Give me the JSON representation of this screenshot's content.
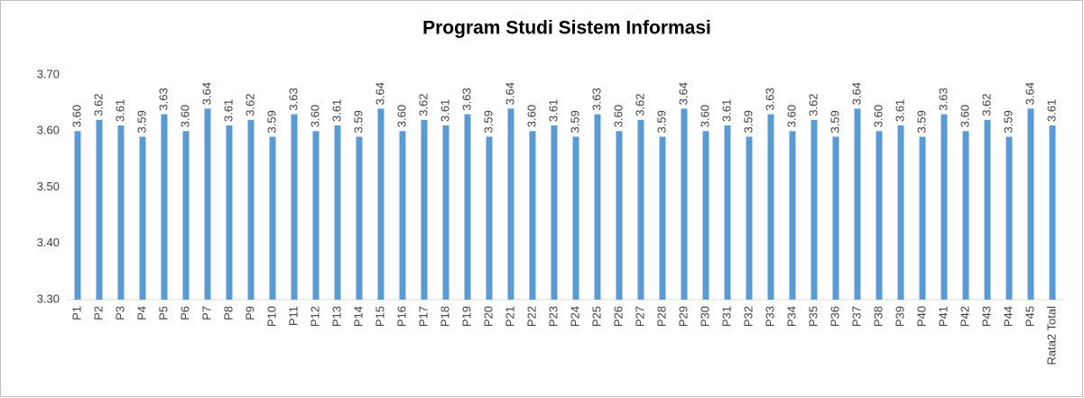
{
  "chart_data": {
    "type": "bar",
    "title": "Program Studi Sistem Informasi",
    "categories": [
      "P1",
      "P2",
      "P3",
      "P4",
      "P5",
      "P6",
      "P7",
      "P8",
      "P9",
      "P10",
      "P11",
      "P12",
      "P13",
      "P14",
      "P15",
      "P16",
      "P17",
      "P18",
      "P19",
      "P20",
      "P21",
      "P22",
      "P23",
      "P24",
      "P25",
      "P26",
      "P27",
      "P28",
      "P29",
      "P30",
      "P31",
      "P32",
      "P33",
      "P34",
      "P35",
      "P36",
      "P37",
      "P38",
      "P39",
      "P40",
      "P41",
      "P42",
      "P43",
      "P44",
      "P45",
      "Rata2 Total"
    ],
    "values": [
      3.6,
      3.62,
      3.61,
      3.59,
      3.63,
      3.6,
      3.64,
      3.61,
      3.62,
      3.59,
      3.63,
      3.6,
      3.61,
      3.59,
      3.64,
      3.6,
      3.62,
      3.61,
      3.63,
      3.59,
      3.64,
      3.6,
      3.61,
      3.59,
      3.63,
      3.6,
      3.62,
      3.59,
      3.64,
      3.6,
      3.61,
      3.59,
      3.63,
      3.6,
      3.62,
      3.59,
      3.64,
      3.6,
      3.61,
      3.59,
      3.63,
      3.6,
      3.62,
      3.59,
      3.64,
      3.61
    ],
    "value_labels": [
      "3.60",
      "3.62",
      "3.61",
      "3.59",
      "3.63",
      "3.60",
      "3.64",
      "3.61",
      "3.62",
      "3.59",
      "3.63",
      "3.60",
      "3.61",
      "3.59",
      "3.64",
      "3.60",
      "3.62",
      "3.61",
      "3.63",
      "3.59",
      "3.64",
      "3.60",
      "3.61",
      "3.59",
      "3.63",
      "3.60",
      "3.62",
      "3.59",
      "3.64",
      "3.60",
      "3.61",
      "3.59",
      "3.63",
      "3.60",
      "3.62",
      "3.59",
      "3.64",
      "3.60",
      "3.61",
      "3.59",
      "3.63",
      "3.60",
      "3.62",
      "3.59",
      "3.64",
      "3.61"
    ],
    "color": "#5b9bd5",
    "ylim": [
      3.3,
      3.7
    ],
    "yticks": [
      {
        "value": 3.3,
        "label": "3.30"
      },
      {
        "value": 3.4,
        "label": "3.40"
      },
      {
        "value": 3.5,
        "label": "3.50"
      },
      {
        "value": 3.6,
        "label": "3.60"
      },
      {
        "value": 3.7,
        "label": "3.70"
      }
    ],
    "grid": false
  }
}
